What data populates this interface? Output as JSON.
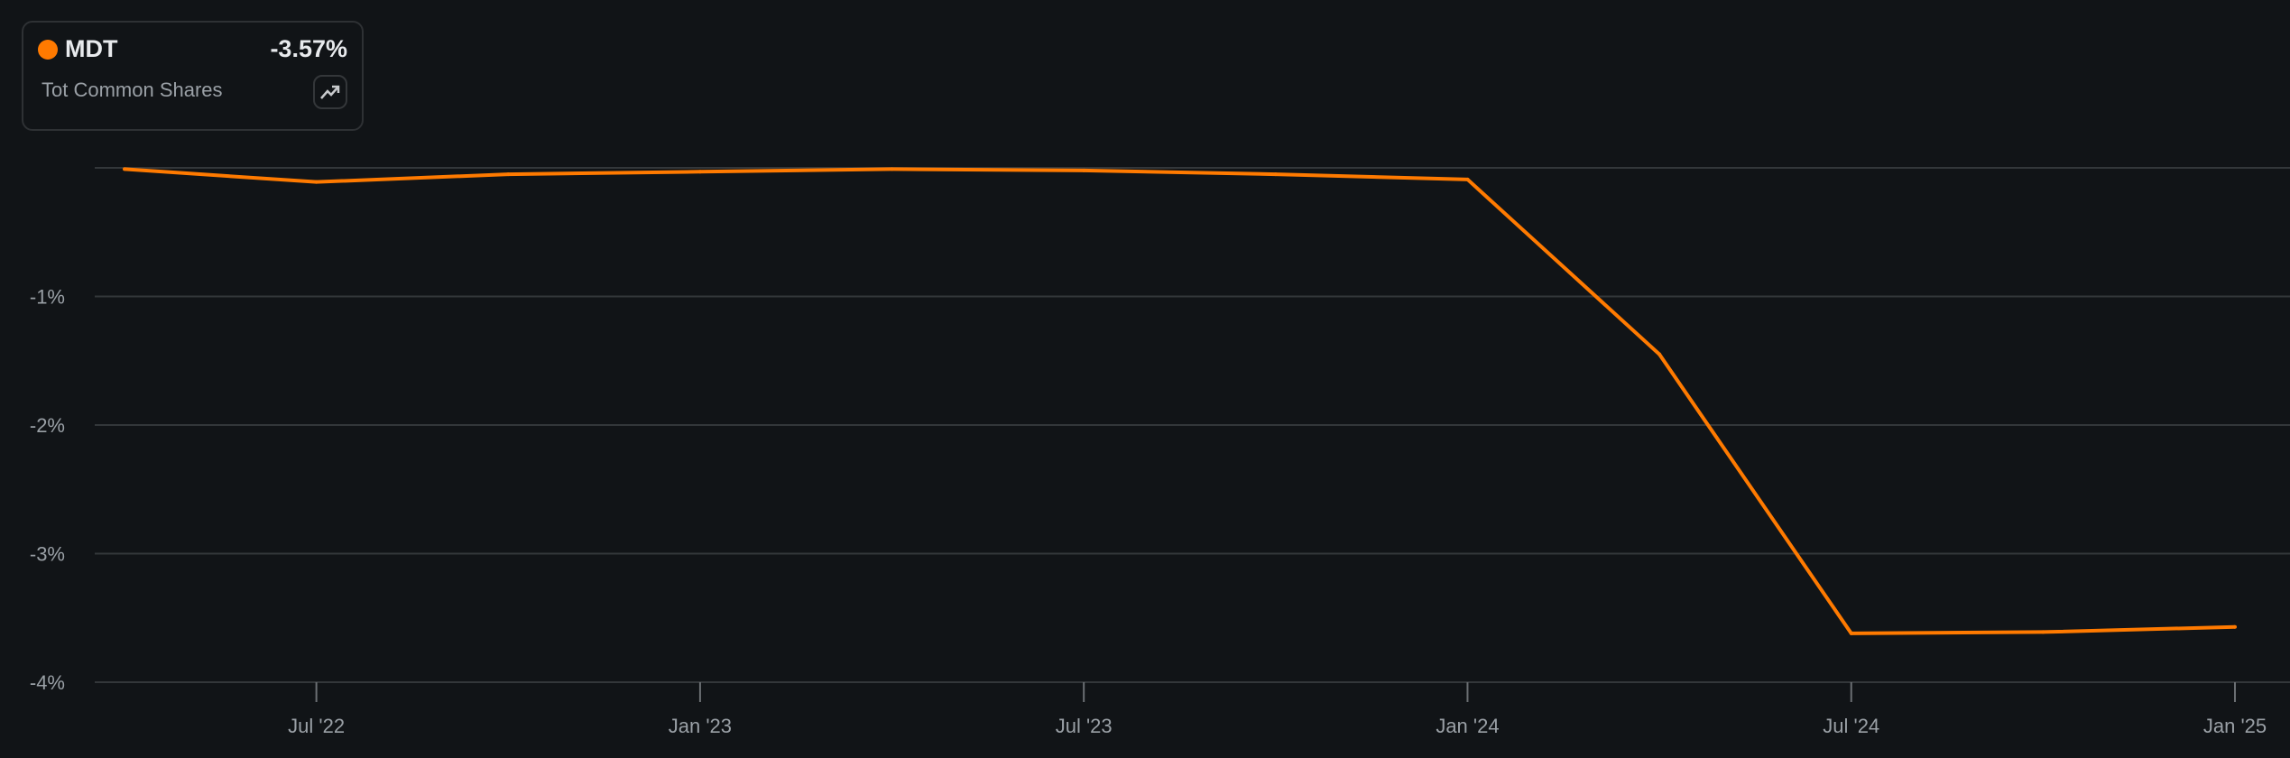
{
  "legend": {
    "ticker": "MDT",
    "change": "-3.57%",
    "metric": "Tot Common Shares",
    "color": "#ff7a00",
    "trend_icon": "trending-up-icon"
  },
  "chart_data": {
    "type": "line",
    "title": "",
    "xlabel": "",
    "ylabel": "",
    "x": [
      "Apr 2022",
      "Jul 2022",
      "Oct 2022",
      "Jan 2023",
      "Apr 2023",
      "Jul 2023",
      "Oct 2023",
      "Jan 2024",
      "Apr 2024",
      "Jul 2024",
      "Oct 2024",
      "Jan 2025"
    ],
    "series": [
      {
        "name": "MDT",
        "color": "#ff7a00",
        "values": [
          -0.01,
          -0.11,
          -0.05,
          -0.03,
          -0.01,
          -0.02,
          -0.05,
          -0.09,
          -1.45,
          -3.62,
          -3.61,
          -3.57
        ]
      }
    ],
    "ylim": [
      -4,
      0
    ],
    "yticks": [
      0,
      -1,
      -2,
      -3,
      -4
    ],
    "ytick_labels": [
      "",
      "-1%",
      "-2%",
      "-3%",
      "-4%"
    ],
    "xtick_labels": [
      {
        "at": "Jul 2022",
        "label": "Jul '22"
      },
      {
        "at": "Jan 2023",
        "label": "Jan '23"
      },
      {
        "at": "Jul 2023",
        "label": "Jul '23"
      },
      {
        "at": "Jan 2024",
        "label": "Jan '24"
      },
      {
        "at": "Jul 2024",
        "label": "Jul '24"
      },
      {
        "at": "Jan 2025",
        "label": "Jan '25"
      }
    ],
    "grid": true,
    "legend_position": "top-left"
  }
}
